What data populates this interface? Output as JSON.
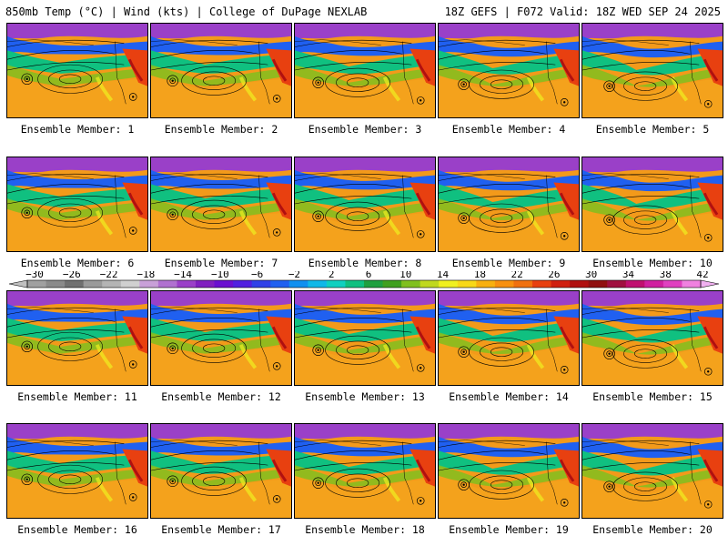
{
  "header": {
    "left": "850mb Temp (°C) | Wind (kts) | College of DuPage NEXLAB",
    "right": "18Z GEFS | F072 Valid: 18Z WED SEP 24 2025"
  },
  "members": [
    "Ensemble Member: 1",
    "Ensemble Member: 2",
    "Ensemble Member: 3",
    "Ensemble Member: 4",
    "Ensemble Member: 5",
    "Ensemble Member: 6",
    "Ensemble Member: 7",
    "Ensemble Member: 8",
    "Ensemble Member: 9",
    "Ensemble Member: 10",
    "Ensemble Member: 11",
    "Ensemble Member: 12",
    "Ensemble Member: 13",
    "Ensemble Member: 14",
    "Ensemble Member: 15",
    "Ensemble Member: 16",
    "Ensemble Member: 17",
    "Ensemble Member: 18",
    "Ensemble Member: 19",
    "Ensemble Member: 20"
  ],
  "colorbar": {
    "labels": [
      "−30",
      "−26",
      "−22",
      "−18",
      "−14",
      "−10",
      "−6",
      "−2",
      "2",
      "6",
      "10",
      "14",
      "18",
      "22",
      "26",
      "30",
      "34",
      "38",
      "42"
    ],
    "min": -30,
    "max": 42,
    "colors": [
      "#a0a0a0",
      "#8a8a8a",
      "#707070",
      "#9a9a9a",
      "#b4b4b4",
      "#d0d0d0",
      "#c8a0d8",
      "#b070d0",
      "#9a40c8",
      "#8020c0",
      "#6a10d0",
      "#5020e0",
      "#3040e8",
      "#2060f0",
      "#1090f0",
      "#10b8e8",
      "#10d0c0",
      "#10c080",
      "#20a040",
      "#40a020",
      "#80c020",
      "#c0d820",
      "#f0f020",
      "#f8d818",
      "#f8b010",
      "#f89010",
      "#f07010",
      "#e84010",
      "#d02010",
      "#b01010",
      "#901010",
      "#a01040",
      "#c01070",
      "#d020a0",
      "#e040c0",
      "#f080e0"
    ]
  },
  "icons": {
    "left_arrow": "triangle-left",
    "right_arrow": "triangle-right"
  }
}
